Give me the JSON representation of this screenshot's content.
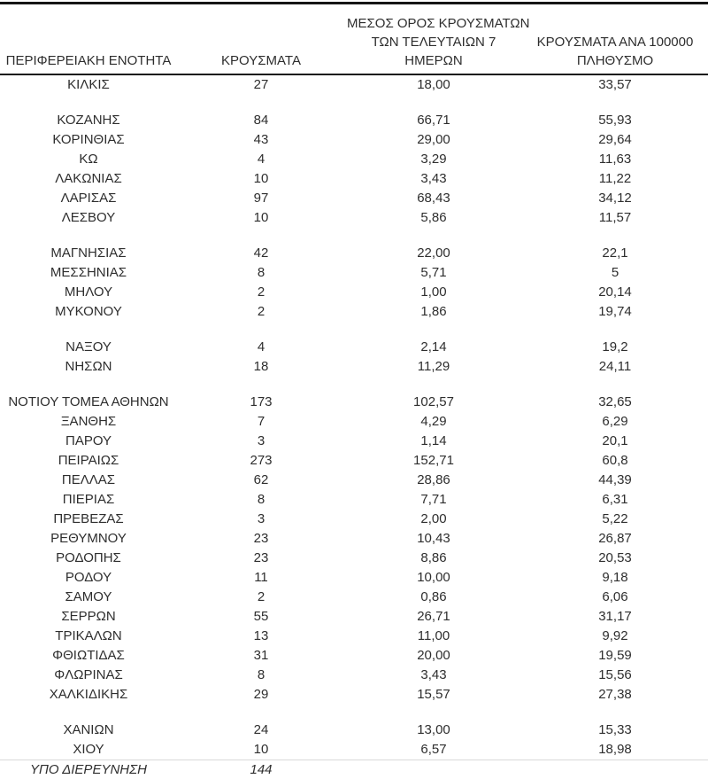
{
  "colors": {
    "text": "#2e2e2e",
    "heavy_line": "#161616",
    "light_separator": "#d9d9d9",
    "background": "#ffffff"
  },
  "chart_data": {
    "type": "table",
    "title": "",
    "legend_position": "none",
    "grid": false,
    "columns": [
      {
        "id": "region",
        "lines": [
          "ΠΕΡΙΦΕΡΕΙΑΚΗ ΕΝΟΤΗΤΑ"
        ]
      },
      {
        "id": "cases",
        "lines": [
          "ΚΡΟΥΣΜΑΤΑ"
        ]
      },
      {
        "id": "avg7",
        "lines": [
          "ΜΕΣΟΣ ΟΡΟΣ ΚΡΟΥΣΜΑΤΩΝ",
          "ΤΩΝ ΤΕΛΕΥΤΑΙΩΝ 7",
          "ΗΜΕΡΩΝ"
        ]
      },
      {
        "id": "per100k",
        "lines": [
          "ΚΡΟΥΣΜΑΤΑ ΑΝΑ 100000",
          "ΠΛΗΘΥΣΜΟ"
        ]
      }
    ],
    "rows": [
      {
        "region": "ΚΙΛΚΙΣ",
        "cases": "27",
        "avg7": "18,00",
        "per100k": "33,57"
      },
      {
        "spacer": true
      },
      {
        "region": "ΚΟΖΑΝΗΣ",
        "cases": "84",
        "avg7": "66,71",
        "per100k": "55,93"
      },
      {
        "region": "ΚΟΡΙΝΘΙΑΣ",
        "cases": "43",
        "avg7": "29,00",
        "per100k": "29,64"
      },
      {
        "region": "ΚΩ",
        "cases": "4",
        "avg7": "3,29",
        "per100k": "11,63"
      },
      {
        "region": "ΛΑΚΩΝΙΑΣ",
        "cases": "10",
        "avg7": "3,43",
        "per100k": "11,22"
      },
      {
        "region": "ΛΑΡΙΣΑΣ",
        "cases": "97",
        "avg7": "68,43",
        "per100k": "34,12"
      },
      {
        "region": "ΛΕΣΒΟΥ",
        "cases": "10",
        "avg7": "5,86",
        "per100k": "11,57"
      },
      {
        "spacer": true
      },
      {
        "region": "ΜΑΓΝΗΣΙΑΣ",
        "cases": "42",
        "avg7": "22,00",
        "per100k": "22,1"
      },
      {
        "region": "ΜΕΣΣΗΝΙΑΣ",
        "cases": "8",
        "avg7": "5,71",
        "per100k": "5"
      },
      {
        "region": "ΜΗΛΟΥ",
        "cases": "2",
        "avg7": "1,00",
        "per100k": "20,14"
      },
      {
        "region": "ΜΥΚΟΝΟΥ",
        "cases": "2",
        "avg7": "1,86",
        "per100k": "19,74"
      },
      {
        "spacer": true
      },
      {
        "region": "ΝΑΞΟΥ",
        "cases": "4",
        "avg7": "2,14",
        "per100k": "19,2"
      },
      {
        "region": "ΝΗΣΩΝ",
        "cases": "18",
        "avg7": "11,29",
        "per100k": "24,11"
      },
      {
        "spacer": true
      },
      {
        "region": "ΝΟΤΙΟΥ ΤΟΜΕΑ ΑΘΗΝΩΝ",
        "cases": "173",
        "avg7": "102,57",
        "per100k": "32,65"
      },
      {
        "region": "ΞΑΝΘΗΣ",
        "cases": "7",
        "avg7": "4,29",
        "per100k": "6,29"
      },
      {
        "region": "ΠΑΡΟΥ",
        "cases": "3",
        "avg7": "1,14",
        "per100k": "20,1"
      },
      {
        "region": "ΠΕΙΡΑΙΩΣ",
        "cases": "273",
        "avg7": "152,71",
        "per100k": "60,8"
      },
      {
        "region": "ΠΕΛΛΑΣ",
        "cases": "62",
        "avg7": "28,86",
        "per100k": "44,39"
      },
      {
        "region": "ΠΙΕΡΙΑΣ",
        "cases": "8",
        "avg7": "7,71",
        "per100k": "6,31"
      },
      {
        "region": "ΠΡΕΒΕΖΑΣ",
        "cases": "3",
        "avg7": "2,00",
        "per100k": "5,22"
      },
      {
        "region": "ΡΕΘΥΜΝΟΥ",
        "cases": "23",
        "avg7": "10,43",
        "per100k": "26,87"
      },
      {
        "region": "ΡΟΔΟΠΗΣ",
        "cases": "23",
        "avg7": "8,86",
        "per100k": "20,53"
      },
      {
        "region": "ΡΟΔΟΥ",
        "cases": "11",
        "avg7": "10,00",
        "per100k": "9,18"
      },
      {
        "region": "ΣΑΜΟΥ",
        "cases": "2",
        "avg7": "0,86",
        "per100k": "6,06"
      },
      {
        "region": "ΣΕΡΡΩΝ",
        "cases": "55",
        "avg7": "26,71",
        "per100k": "31,17"
      },
      {
        "region": "ΤΡΙΚΑΛΩΝ",
        "cases": "13",
        "avg7": "11,00",
        "per100k": "9,92"
      },
      {
        "region": "ΦΘΙΩΤΙΔΑΣ",
        "cases": "31",
        "avg7": "20,00",
        "per100k": "19,59"
      },
      {
        "region": "ΦΛΩΡΙΝΑΣ",
        "cases": "8",
        "avg7": "3,43",
        "per100k": "15,56"
      },
      {
        "region": "ΧΑΛΚΙΔΙΚΗΣ",
        "cases": "29",
        "avg7": "15,57",
        "per100k": "27,38"
      },
      {
        "spacer": true
      },
      {
        "region": "ΧΑΝΙΩΝ",
        "cases": "24",
        "avg7": "13,00",
        "per100k": "15,33"
      },
      {
        "region": "ΧΙΟΥ",
        "cases": "10",
        "avg7": "6,57",
        "per100k": "18,98"
      },
      {
        "region": "ΥΠΟ ΔΙΕΡΕΥΝΗΣΗ",
        "cases": "144",
        "avg7": "",
        "per100k": "",
        "italic": true,
        "sep_top": true
      }
    ]
  }
}
